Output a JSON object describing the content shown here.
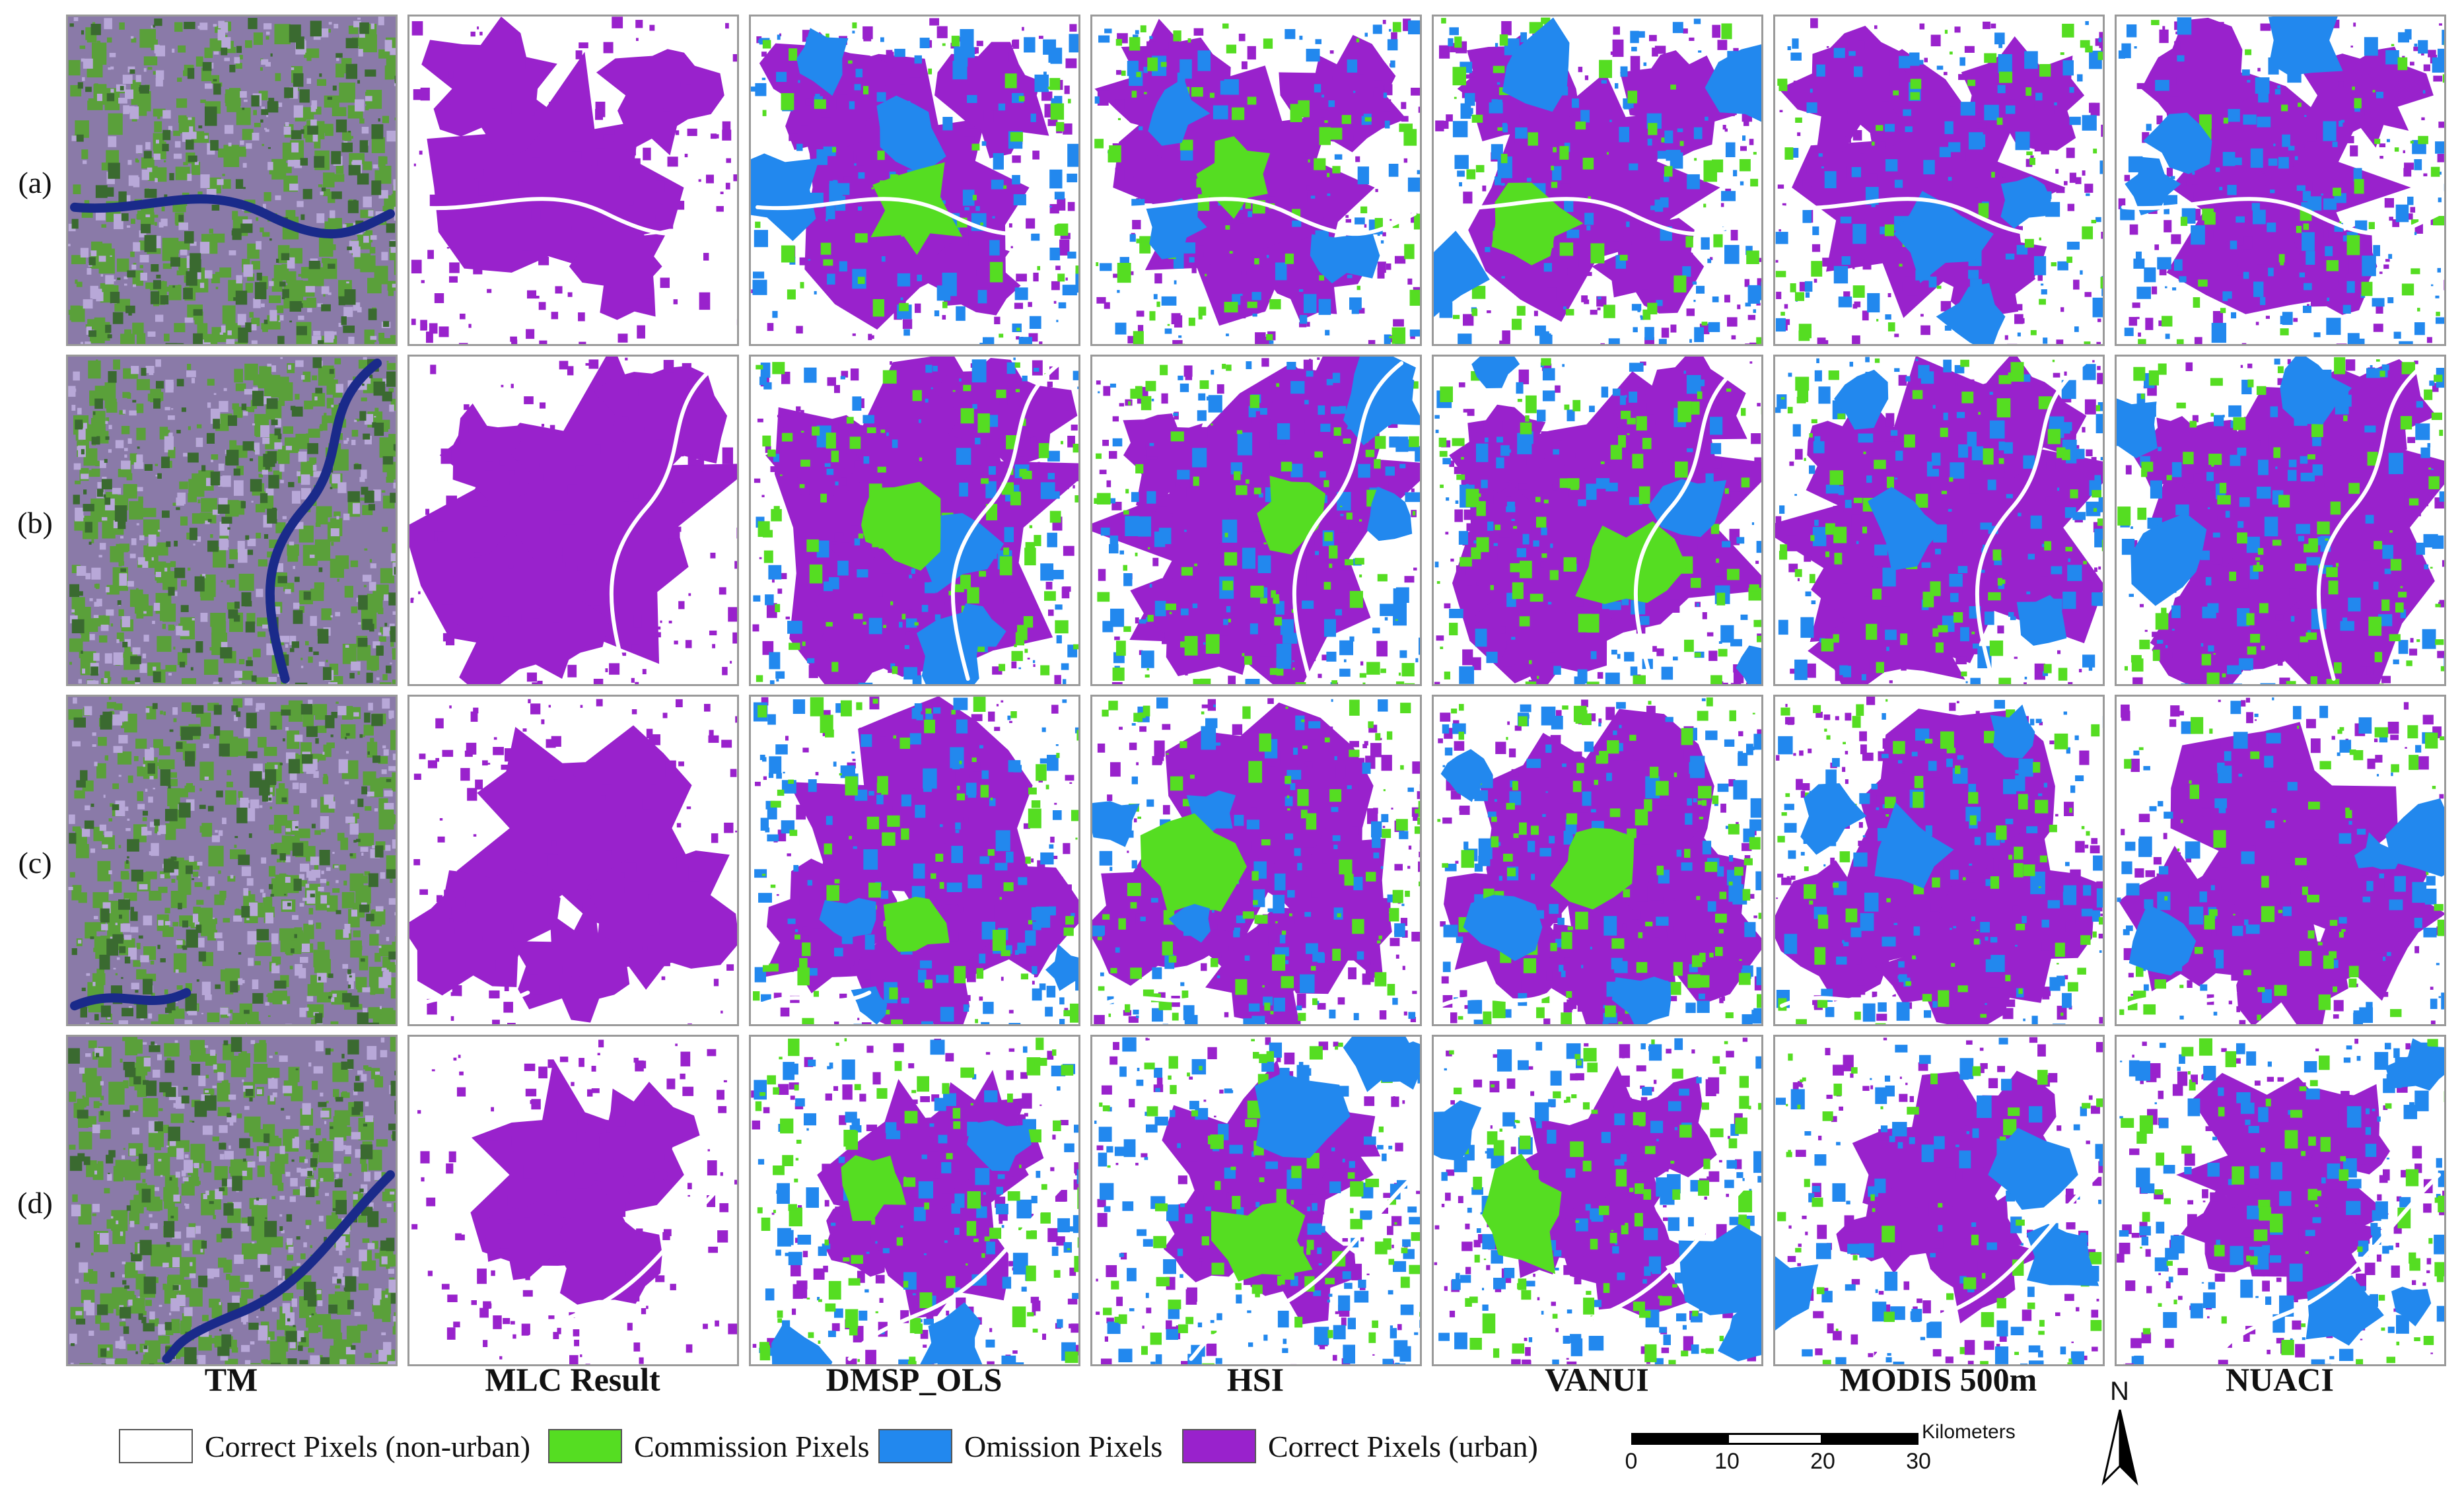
{
  "figure": {
    "row_labels": [
      "(a)",
      "(b)",
      "(c)",
      "(d)"
    ],
    "columns": [
      {
        "key": "tm",
        "label": "TM"
      },
      {
        "key": "mlc",
        "label": "MLC Result"
      },
      {
        "key": "dmsp",
        "label": "DMSP_OLS"
      },
      {
        "key": "hsi",
        "label": "HSI"
      },
      {
        "key": "vanui",
        "label": "VANUI"
      },
      {
        "key": "modis",
        "label": "MODIS 500m"
      },
      {
        "key": "nuaci",
        "label": "NUACI"
      }
    ],
    "colors": {
      "non_urban": "#ffffff",
      "commission": "#55dd22",
      "omission": "#2288ee",
      "urban": "#9922cc",
      "water": "#1a2a8a",
      "tm_base": "#8a7aa8"
    }
  },
  "legend": {
    "items": [
      {
        "label": "Correct Pixels (non-urban)",
        "color": "#ffffff"
      },
      {
        "label": "Commission Pixels",
        "color": "#55dd22"
      },
      {
        "label": "Omission Pixels",
        "color": "#2288ee"
      },
      {
        "label": "Correct Pixels (urban)",
        "color": "#9922cc"
      }
    ]
  },
  "scalebar": {
    "ticks": [
      "0",
      "10",
      "20",
      "30"
    ],
    "unit": "Kilometers"
  },
  "north_arrow": {
    "letter": "N"
  }
}
